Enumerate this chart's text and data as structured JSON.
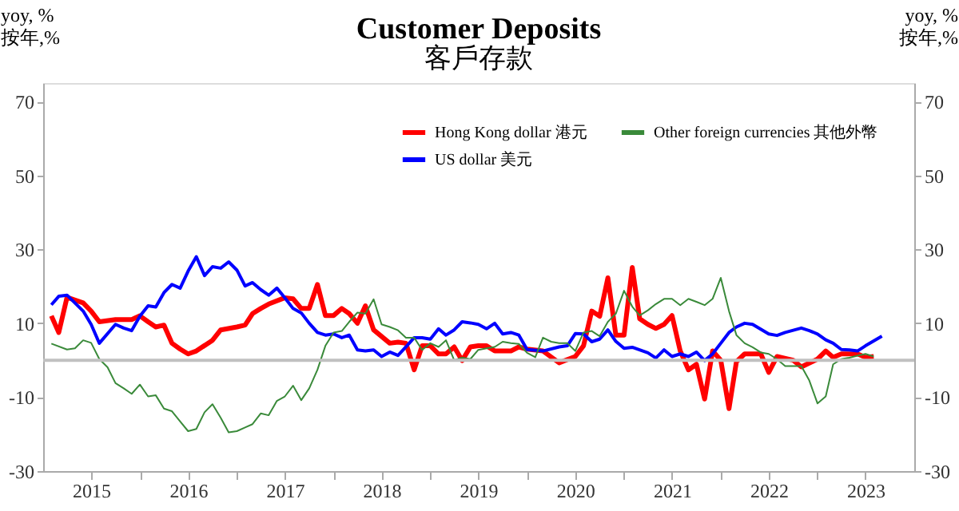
{
  "chart_data": {
    "type": "line",
    "title": "Customer Deposits",
    "subtitle": "客戶存款",
    "ylabel": "yoy, %\n按年,%",
    "y2label": "yoy, %\n按年,%",
    "xlim": [
      "2015-01",
      "2024-01"
    ],
    "xticks": [
      {
        "value": "2015-07",
        "label": "2015"
      },
      {
        "value": "2016-01",
        "label": null
      },
      {
        "value": "2016-07",
        "label": "2016"
      },
      {
        "value": "2017-01",
        "label": null
      },
      {
        "value": "2017-07",
        "label": "2017"
      },
      {
        "value": "2018-01",
        "label": null
      },
      {
        "value": "2018-07",
        "label": "2018"
      },
      {
        "value": "2019-01",
        "label": null
      },
      {
        "value": "2019-07",
        "label": "2019"
      },
      {
        "value": "2020-01",
        "label": null
      },
      {
        "value": "2020-07",
        "label": "2020"
      },
      {
        "value": "2021-01",
        "label": null
      },
      {
        "value": "2021-07",
        "label": "2021"
      },
      {
        "value": "2022-01",
        "label": null
      },
      {
        "value": "2022-07",
        "label": "2022"
      },
      {
        "value": "2023-01",
        "label": null
      },
      {
        "value": "2023-07",
        "label": "2023"
      }
    ],
    "ylim": [
      -30,
      75
    ],
    "yticks": [
      -30,
      -10,
      10,
      30,
      50,
      70
    ],
    "y2lim": [
      -30,
      75
    ],
    "y2ticks": [
      -30,
      -10,
      10,
      30,
      50,
      70
    ],
    "grid": false,
    "legend": "top right",
    "marker": "none",
    "line_style": "solid",
    "ref_lines": [
      {
        "axis": "y",
        "value": 0,
        "color": "#c0c0c0"
      }
    ],
    "series": [
      {
        "name": "Hong Kong dollar 港元",
        "color": "#ff0000",
        "x": [
          "2015-02",
          "2015-03",
          "2015-04",
          "2015-06",
          "2015-07",
          "2015-08",
          "2015-10",
          "2015-12",
          "2016-01",
          "2016-02",
          "2016-03",
          "2016-04",
          "2016-05",
          "2016-06",
          "2016-07",
          "2016-08",
          "2016-10",
          "2016-11",
          "2017-01",
          "2017-02",
          "2017-03",
          "2017-04",
          "2017-05",
          "2017-07",
          "2017-08",
          "2017-09",
          "2017-10",
          "2017-11",
          "2017-12",
          "2018-01",
          "2018-02",
          "2018-03",
          "2018-04",
          "2018-05",
          "2018-06",
          "2018-08",
          "2018-09",
          "2018-10",
          "2018-11",
          "2018-12",
          "2019-01",
          "2019-02",
          "2019-03",
          "2019-04",
          "2019-05",
          "2019-06",
          "2019-07",
          "2019-08",
          "2019-09",
          "2019-11",
          "2019-12",
          "2020-01",
          "2020-03",
          "2020-05",
          "2020-07",
          "2020-08",
          "2020-09",
          "2020-10",
          "2020-11",
          "2020-12",
          "2021-01",
          "2021-02",
          "2021-03",
          "2021-04",
          "2021-05",
          "2021-06",
          "2021-07",
          "2021-08",
          "2021-09",
          "2021-10",
          "2021-11",
          "2021-12",
          "2022-01",
          "2022-02",
          "2022-03",
          "2022-04",
          "2022-06",
          "2022-07",
          "2022-08",
          "2022-10",
          "2022-11",
          "2023-01",
          "2023-02",
          "2023-03",
          "2023-04",
          "2023-06",
          "2023-07",
          "2023-08"
        ],
        "values": [
          12,
          7.5,
          17,
          15.5,
          13.3,
          10.4,
          11,
          11,
          12,
          10.4,
          9,
          9.5,
          4.6,
          3,
          1.7,
          2.5,
          5.4,
          8.2,
          9,
          9.5,
          12.6,
          14,
          15.2,
          16.9,
          16.6,
          14,
          14,
          20.5,
          12.1,
          12.1,
          14,
          12.6,
          10,
          14.7,
          8.2,
          4.6,
          4.9,
          4.6,
          -2.6,
          3.9,
          3.9,
          1.7,
          1.7,
          3.6,
          -0.1,
          3.6,
          3.9,
          3.9,
          2.5,
          2.5,
          3.6,
          3,
          2.5,
          -0.7,
          1.0,
          3.9,
          13.3,
          11.9,
          22.3,
          6.8,
          6.8,
          25.1,
          11.2,
          9.7,
          8.6,
          9.7,
          12.1,
          2.5,
          -2.6,
          -1.1,
          -10.5,
          2.5,
          0,
          -13.1,
          -0.4,
          1.7,
          1.7,
          -3.3,
          1.0,
          0,
          -1.8,
          0.3,
          2.5,
          0.8,
          1.7,
          1.7,
          0.8,
          1.0
        ]
      },
      {
        "name": "US dollar 美元",
        "color": "#0000ff",
        "x": [
          "2015-02",
          "2015-03",
          "2015-04",
          "2015-06",
          "2015-07",
          "2015-08",
          "2015-10",
          "2015-11",
          "2015-12",
          "2016-01",
          "2016-02",
          "2016-03",
          "2016-04",
          "2016-05",
          "2016-06",
          "2016-07",
          "2016-08",
          "2016-09",
          "2016-10",
          "2016-11",
          "2016-12",
          "2017-01",
          "2017-02",
          "2017-03",
          "2017-04",
          "2017-05",
          "2017-06",
          "2017-07",
          "2017-08",
          "2017-09",
          "2017-10",
          "2017-11",
          "2017-12",
          "2018-01",
          "2018-02",
          "2018-03",
          "2018-04",
          "2018-05",
          "2018-06",
          "2018-07",
          "2018-08",
          "2018-09",
          "2018-10",
          "2018-11",
          "2018-12",
          "2019-01",
          "2019-02",
          "2019-03",
          "2019-04",
          "2019-05",
          "2019-06",
          "2019-07",
          "2019-08",
          "2019-09",
          "2019-10",
          "2019-11",
          "2019-12",
          "2020-01",
          "2020-03",
          "2020-05",
          "2020-06",
          "2020-07",
          "2020-08",
          "2020-09",
          "2020-10",
          "2020-11",
          "2020-12",
          "2021-01",
          "2021-02",
          "2021-04",
          "2021-05",
          "2021-06",
          "2021-07",
          "2021-08",
          "2021-09",
          "2021-10",
          "2021-11",
          "2021-12",
          "2022-01",
          "2022-02",
          "2022-03",
          "2022-04",
          "2022-05",
          "2022-07",
          "2022-08",
          "2022-09",
          "2022-11",
          "2022-12",
          "2023-01",
          "2023-02",
          "2023-03",
          "2023-04",
          "2023-05",
          "2023-06",
          "2023-07",
          "2023-09"
        ],
        "values": [
          15,
          17.3,
          17.6,
          13.3,
          9.7,
          4.6,
          9.7,
          8.7,
          8.0,
          11.9,
          14.7,
          14.4,
          18.3,
          20.5,
          19.5,
          24.1,
          28,
          22.9,
          25.3,
          24.9,
          26.6,
          24.4,
          20.1,
          21,
          19.1,
          17.6,
          19.5,
          16.9,
          14,
          12.8,
          10,
          7.5,
          6.8,
          7.1,
          6.1,
          6.8,
          2.8,
          2.5,
          2.8,
          1.0,
          2.2,
          1.3,
          3.6,
          6.1,
          6.1,
          5.7,
          8.5,
          6.8,
          8.2,
          10.4,
          10.1,
          9.7,
          8.5,
          10,
          7.1,
          7.5,
          6.8,
          2.9,
          2.5,
          3.6,
          3.9,
          7.2,
          7.1,
          5.0,
          5.7,
          8.2,
          5.1,
          3.2,
          3.5,
          2.0,
          0.6,
          2.8,
          1.0,
          1.7,
          1.0,
          2.2,
          -0.1,
          1.7,
          4.6,
          7.5,
          9,
          10,
          9.7,
          7.1,
          6.7,
          7.5,
          8.7,
          8,
          7.1,
          5.5,
          4.6,
          2.9,
          2.8,
          2.5,
          3.9,
          6.5
        ]
      },
      {
        "name": "Other foreign currencies 其他外幣",
        "color": "#3a8a3a",
        "x": [
          "2015-02",
          "2015-04",
          "2015-05",
          "2015-06",
          "2015-07",
          "2015-08",
          "2015-09",
          "2015-10",
          "2015-11",
          "2015-12",
          "2016-01",
          "2016-02",
          "2016-03",
          "2016-04",
          "2016-05",
          "2016-06",
          "2016-07",
          "2016-08",
          "2016-09",
          "2016-10",
          "2016-11",
          "2016-12",
          "2017-01",
          "2017-02",
          "2017-03",
          "2017-04",
          "2017-05",
          "2017-06",
          "2017-07",
          "2017-08",
          "2017-09",
          "2017-10",
          "2017-11",
          "2017-12",
          "2018-01",
          "2018-02",
          "2018-03",
          "2018-04",
          "2018-05",
          "2018-06",
          "2018-07",
          "2018-08",
          "2018-09",
          "2018-10",
          "2018-11",
          "2018-12",
          "2019-01",
          "2019-02",
          "2019-03",
          "2019-04",
          "2019-05",
          "2019-06",
          "2019-07",
          "2019-08",
          "2019-09",
          "2019-10",
          "2019-11",
          "2019-12",
          "2020-01",
          "2020-02",
          "2020-03",
          "2020-04",
          "2020-05",
          "2020-06",
          "2020-07",
          "2020-08",
          "2020-09",
          "2020-10",
          "2020-11",
          "2020-12",
          "2021-01",
          "2021-02",
          "2021-03",
          "2021-04",
          "2021-05",
          "2021-06",
          "2021-07",
          "2021-08",
          "2021-09",
          "2021-10",
          "2021-11",
          "2021-12",
          "2022-01",
          "2022-02",
          "2022-03",
          "2022-04",
          "2022-05",
          "2022-06",
          "2022-07",
          "2022-08",
          "2022-09",
          "2022-10",
          "2022-11",
          "2022-12",
          "2023-01",
          "2023-02",
          "2023-03",
          "2023-04",
          "2023-05",
          "2023-06",
          "2023-07",
          "2023-08"
        ],
        "values": [
          4.5,
          2.9,
          3.2,
          5.4,
          4.7,
          0.3,
          -1.9,
          -6.2,
          -7.6,
          -9.1,
          -6.6,
          -9.8,
          -9.5,
          -13.1,
          -13.8,
          -16.6,
          -19.2,
          -18.6,
          -14.1,
          -11.9,
          -15.6,
          -19.5,
          -19.2,
          -18.2,
          -17.3,
          -14.4,
          -14.9,
          -11,
          -9.8,
          -6.9,
          -10.8,
          -7.6,
          -2.6,
          3.9,
          7.5,
          7.9,
          10.4,
          12.9,
          12.6,
          16.5,
          9.7,
          9,
          8.1,
          6.1,
          6.1,
          2.8,
          4.6,
          3.6,
          5.4,
          0.0,
          0.7,
          0.3,
          2.8,
          3.2,
          3.6,
          5.0,
          4.6,
          4.4,
          2,
          0.8,
          6.1,
          5,
          4.6,
          4.6,
          2.5,
          7.5,
          7.9,
          6.5,
          10.4,
          12.6,
          18.8,
          14.5,
          12.1,
          13.5,
          15.2,
          16.6,
          16.6,
          14.9,
          16.6,
          15.8,
          14.9,
          16.6,
          22.3,
          13.3,
          6.8,
          4.6,
          3.5,
          2.1,
          1.7,
          0.3,
          -1.6,
          -1.6,
          -1.6,
          -5.5,
          -11.7,
          -9.8,
          -1.1,
          0.3,
          0.7,
          1.2,
          1.7,
          1.0
        ]
      }
    ]
  }
}
